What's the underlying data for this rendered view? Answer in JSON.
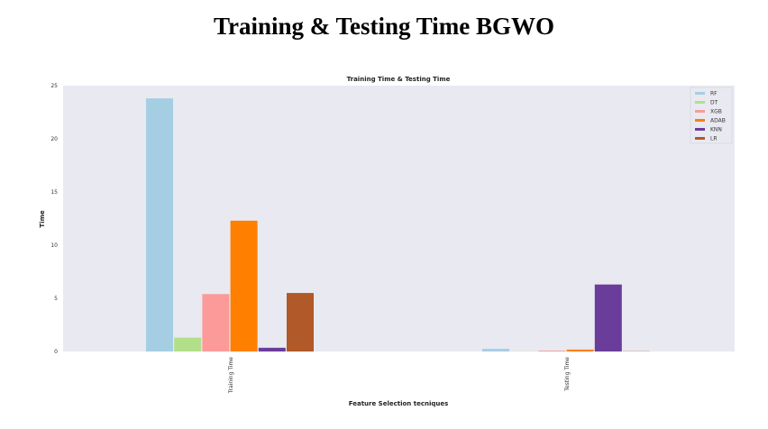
{
  "page": {
    "heading": "Training & Testing Time BGWO"
  },
  "chart_data": {
    "type": "bar",
    "title": "Training Time & Testing Time",
    "xlabel": "Feature Selection tecniques",
    "ylabel": "Time",
    "ylim": [
      0,
      25
    ],
    "yticks": [
      0,
      5,
      10,
      15,
      20,
      25
    ],
    "categories": [
      "Training Time",
      "Testing Time"
    ],
    "legend_position": "top-right",
    "grid": false,
    "series": [
      {
        "name": "RF",
        "color": "#a6cee3",
        "values": [
          23.8,
          0.25
        ]
      },
      {
        "name": "DT",
        "color": "#b2df8a",
        "values": [
          1.3,
          0.02
        ]
      },
      {
        "name": "XGB",
        "color": "#fb9a99",
        "values": [
          5.4,
          0.08
        ]
      },
      {
        "name": "ADAB",
        "color": "#ff7f00",
        "values": [
          12.3,
          0.18
        ]
      },
      {
        "name": "KNN",
        "color": "#6a3d9a",
        "values": [
          0.35,
          6.3
        ]
      },
      {
        "name": "LR",
        "color": "#b15928",
        "values": [
          5.5,
          0.02
        ]
      }
    ],
    "plot_bg": "#e9e9f1"
  }
}
